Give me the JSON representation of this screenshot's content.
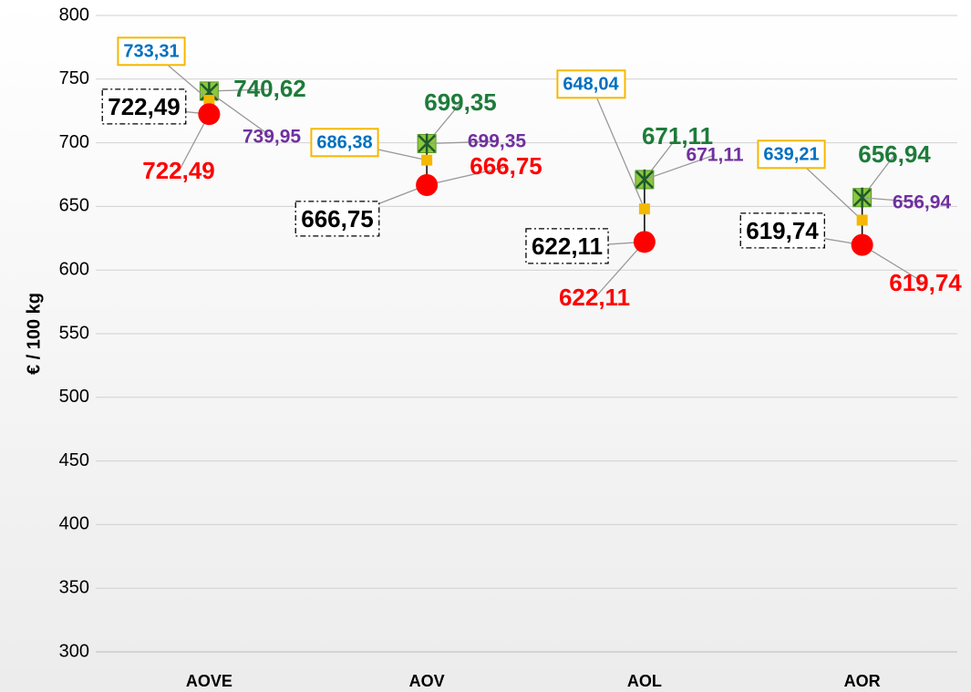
{
  "chart_data": {
    "type": "line",
    "y_label": "€ / 100 kg",
    "categories": [
      "AOVE",
      "AOV",
      "AOL",
      "AOR"
    ],
    "ylim": [
      300,
      800
    ],
    "yticks": [
      300,
      350,
      400,
      450,
      500,
      550,
      600,
      650,
      700,
      750,
      800
    ],
    "grid": true,
    "series": [
      {
        "color": "#1e7b3a",
        "marker": "square",
        "values": [
          740.62,
          699.35,
          671.11,
          656.94
        ],
        "value_labels": [
          "740,62",
          "699,35",
          "671,11",
          "656,94"
        ]
      },
      {
        "color": "#7030a0",
        "marker": "x",
        "values": [
          739.95,
          699.35,
          671.11,
          656.94
        ],
        "value_labels": [
          "739,95",
          "699,35",
          "671,11",
          "656,94"
        ]
      },
      {
        "color": "#0070c0",
        "marker": "small-square",
        "values": [
          733.31,
          686.38,
          648.04,
          639.21
        ],
        "value_labels": [
          "733,31",
          "686,38",
          "648,04",
          "639,21"
        ]
      },
      {
        "color": "#000000",
        "marker": "none",
        "values": [
          722.49,
          666.75,
          622.11,
          619.74
        ],
        "value_labels": [
          "722,49",
          "666,75",
          "622,11",
          "619,74"
        ]
      },
      {
        "color": "#ff0000",
        "marker": "circle",
        "values": [
          722.49,
          666.75,
          622.11,
          619.74
        ],
        "value_labels": [
          "722,49",
          "666,75",
          "622,11",
          "619,74"
        ]
      }
    ]
  }
}
